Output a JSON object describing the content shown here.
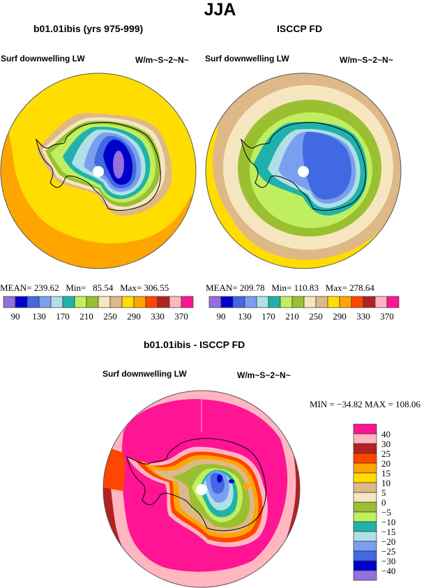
{
  "figure": {
    "title": "JJA"
  },
  "chart_data": [
    {
      "type": "heatmap",
      "projection": "south-polar-stereographic",
      "title": "b01.01ibis (yrs 975-999)",
      "left_label": "Surf downwelling LW",
      "right_label": "W/m~S~2~N~",
      "stats": {
        "mean_label": "MEAN=",
        "mean": "239.62",
        "min_label": "Min=",
        "min": "85.54",
        "max_label": "Max=",
        "max": "306.55"
      },
      "levels": [
        90,
        110,
        130,
        150,
        170,
        190,
        210,
        230,
        250,
        270,
        290,
        310,
        330,
        350,
        370
      ],
      "tick_labels": [
        "90",
        "130",
        "170",
        "210",
        "250",
        "290",
        "330",
        "370"
      ],
      "zones": [
        {
          "region": "outer ocean north/east",
          "level_index": 11
        },
        {
          "region": "mid ocean",
          "level_index": 10
        },
        {
          "region": "coastal",
          "level_index": 9
        },
        {
          "region": "interior East Antarctica",
          "level_index": 1
        },
        {
          "region": "plateau peak",
          "level_index": 0
        }
      ]
    },
    {
      "type": "heatmap",
      "projection": "south-polar-stereographic",
      "title": "ISCCP FD",
      "left_label": "Surf downwelling LW",
      "right_label": "W/m~S~2~N~",
      "stats": {
        "mean_label": "MEAN=",
        "mean": "209.78",
        "min_label": "Min=",
        "min": "110.83",
        "max_label": "Max=",
        "max": "278.64"
      },
      "levels": [
        90,
        110,
        130,
        150,
        170,
        190,
        210,
        230,
        250,
        270,
        290,
        310,
        330,
        350,
        370
      ],
      "tick_labels": [
        "90",
        "130",
        "170",
        "210",
        "250",
        "290",
        "330",
        "370"
      ],
      "zones": [
        {
          "region": "outer ring",
          "level_index": 10
        },
        {
          "region": "ring",
          "level_index": 9
        },
        {
          "region": "ring",
          "level_index": 8
        },
        {
          "region": "sea ice",
          "level_index": 7
        },
        {
          "region": "interior",
          "level_index": 2
        }
      ]
    },
    {
      "type": "heatmap",
      "projection": "south-polar-stereographic",
      "title": "b01.01ibis - ISCCP FD",
      "left_label": "Surf downwelling LW",
      "right_label": "W/m~S~2~N~",
      "stats": {
        "min_label": "MIN =",
        "min": "−34.82",
        "max_label": "MAX =",
        "max": "108.06"
      },
      "levels": [
        -40,
        -30,
        -25,
        -20,
        -15,
        -10,
        -5,
        0,
        5,
        10,
        15,
        20,
        25,
        30,
        40
      ],
      "tick_labels": [
        "40",
        "30",
        "25",
        "20",
        "15",
        "10",
        "5",
        "0",
        "−5",
        "−10",
        "−15",
        "−20",
        "−25",
        "−30",
        "−40"
      ],
      "zones": [
        {
          "region": "ocean",
          "level_index": 15
        },
        {
          "region": "outer ring",
          "level_index": 14
        },
        {
          "region": "edge",
          "level_index": 13
        },
        {
          "region": "interior",
          "level_index": 3
        }
      ]
    }
  ],
  "palette": [
    "#9370db",
    "#0000cd",
    "#4169e1",
    "#7b9ff0",
    "#b0e0e6",
    "#20b2aa",
    "#bfef5f",
    "#9ac031",
    "#f5e6c0",
    "#deb887",
    "#ffdd00",
    "#ffa500",
    "#ff4500",
    "#b22222",
    "#ffb6c1",
    "#ff1493"
  ]
}
